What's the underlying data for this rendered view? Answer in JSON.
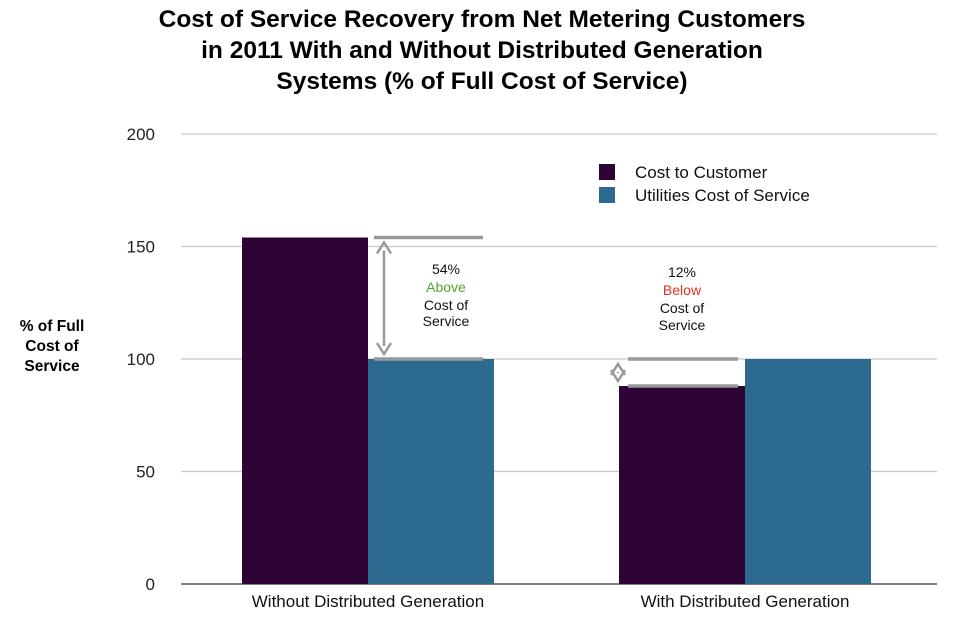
{
  "chart_data": {
    "type": "bar",
    "title_lines": [
      "Cost of Service Recovery from Net Metering Customers",
      "in 2011 With and Without Distributed Generation",
      "Systems (% of Full Cost of Service)"
    ],
    "ylabel_lines": [
      "% of Full",
      "Cost of",
      "Service"
    ],
    "ylim": [
      0,
      200
    ],
    "yticks": [
      0,
      50,
      100,
      150,
      200
    ],
    "grid": true,
    "legend_position": "top-right",
    "categories": [
      "Without Distributed Generation",
      "With Distributed Generation"
    ],
    "series": [
      {
        "name": "Cost to Customer",
        "color": "#2d0435",
        "values": [
          154,
          88
        ]
      },
      {
        "name": "Utilities Cost of Service",
        "color": "#2d6a8f",
        "values": [
          100,
          100
        ]
      }
    ],
    "annotations": [
      {
        "category": "Without Distributed Generation",
        "from": 100,
        "to": 154,
        "percent": "54%",
        "direction": "Above",
        "direction_color": "#5aa02c",
        "line3": "Cost of",
        "line4": "Service"
      },
      {
        "category": "With Distributed Generation",
        "from": 88,
        "to": 100,
        "percent": "12%",
        "direction": "Below",
        "direction_color": "#e0301e",
        "line3": "Cost of",
        "line4": "Service"
      }
    ]
  }
}
